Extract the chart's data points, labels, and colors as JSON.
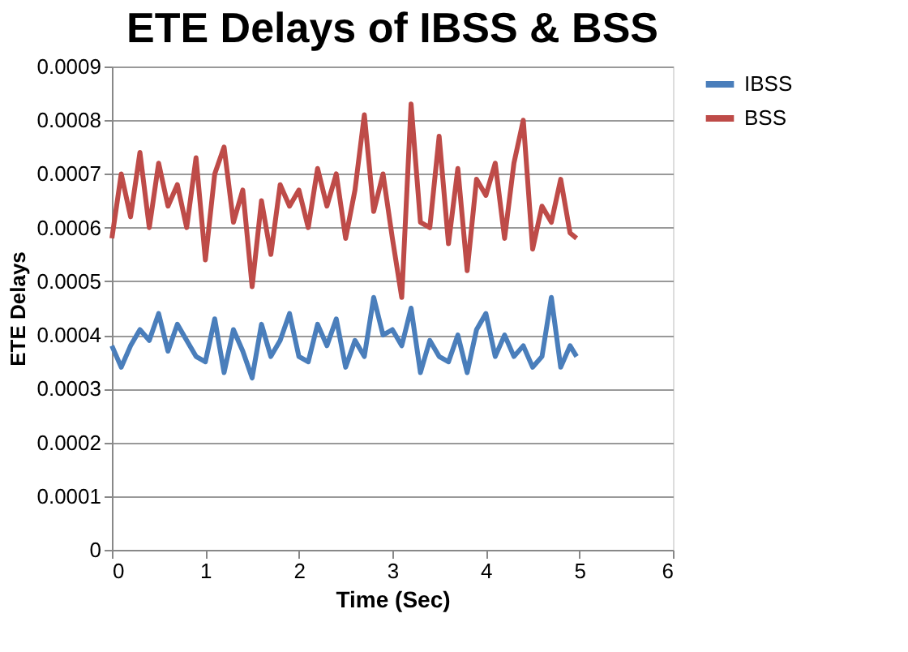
{
  "chart_data": {
    "type": "line",
    "title": "ETE Delays of IBSS & BSS",
    "xlabel": "Time (Sec)",
    "ylabel": "ETE Delays",
    "xlim": [
      0,
      6
    ],
    "xticks": [
      0,
      1,
      2,
      3,
      4,
      5,
      6
    ],
    "ylim": [
      0,
      0.0009
    ],
    "yticks": [
      0,
      0.0001,
      0.0002,
      0.0003,
      0.0004,
      0.0005,
      0.0006,
      0.0007,
      0.0008,
      0.0009
    ],
    "grid": "y",
    "legend": "right",
    "marker": "none",
    "line_style": "solid",
    "x": [
      0,
      0.1,
      0.2,
      0.3,
      0.4,
      0.5,
      0.6,
      0.7,
      0.8,
      0.9,
      1.0,
      1.1,
      1.2,
      1.3,
      1.4,
      1.5,
      1.6,
      1.7,
      1.8,
      1.9,
      2.0,
      2.1,
      2.2,
      2.3,
      2.4,
      2.5,
      2.6,
      2.7,
      2.8,
      2.9,
      3.0,
      3.1,
      3.2,
      3.3,
      3.4,
      3.5,
      3.6,
      3.7,
      3.8,
      3.9,
      4.0,
      4.1,
      4.2,
      4.3,
      4.4,
      4.5,
      4.6,
      4.7,
      4.8,
      4.9,
      4.97
    ],
    "series": [
      {
        "name": "IBSS",
        "color": "#4a7ebb",
        "values": [
          0.00038,
          0.00034,
          0.00038,
          0.00041,
          0.00039,
          0.00044,
          0.00037,
          0.00042,
          0.00039,
          0.00036,
          0.00035,
          0.00043,
          0.00033,
          0.00041,
          0.00037,
          0.00032,
          0.00042,
          0.00036,
          0.00039,
          0.00044,
          0.00036,
          0.00035,
          0.00042,
          0.00038,
          0.00043,
          0.00034,
          0.00039,
          0.00036,
          0.00047,
          0.0004,
          0.00041,
          0.00038,
          0.00045,
          0.00033,
          0.00039,
          0.00036,
          0.00035,
          0.0004,
          0.00033,
          0.00041,
          0.00044,
          0.00036,
          0.0004,
          0.00036,
          0.00038,
          0.00034,
          0.00036,
          0.00047,
          0.00034,
          0.00038,
          0.00036
        ]
      },
      {
        "name": "BSS",
        "color": "#be4b48",
        "values": [
          0.00058,
          0.0007,
          0.00062,
          0.00074,
          0.0006,
          0.00072,
          0.00064,
          0.00068,
          0.0006,
          0.00073,
          0.00054,
          0.0007,
          0.00075,
          0.00061,
          0.00067,
          0.00049,
          0.00065,
          0.00055,
          0.00068,
          0.00064,
          0.00067,
          0.0006,
          0.00071,
          0.00064,
          0.0007,
          0.00058,
          0.00067,
          0.00081,
          0.00063,
          0.0007,
          0.00058,
          0.00047,
          0.00083,
          0.00061,
          0.0006,
          0.00077,
          0.00057,
          0.00071,
          0.00052,
          0.00069,
          0.00066,
          0.00072,
          0.00058,
          0.00072,
          0.0008,
          0.00056,
          0.00064,
          0.00061,
          0.00069,
          0.00059,
          0.00058
        ]
      }
    ]
  }
}
